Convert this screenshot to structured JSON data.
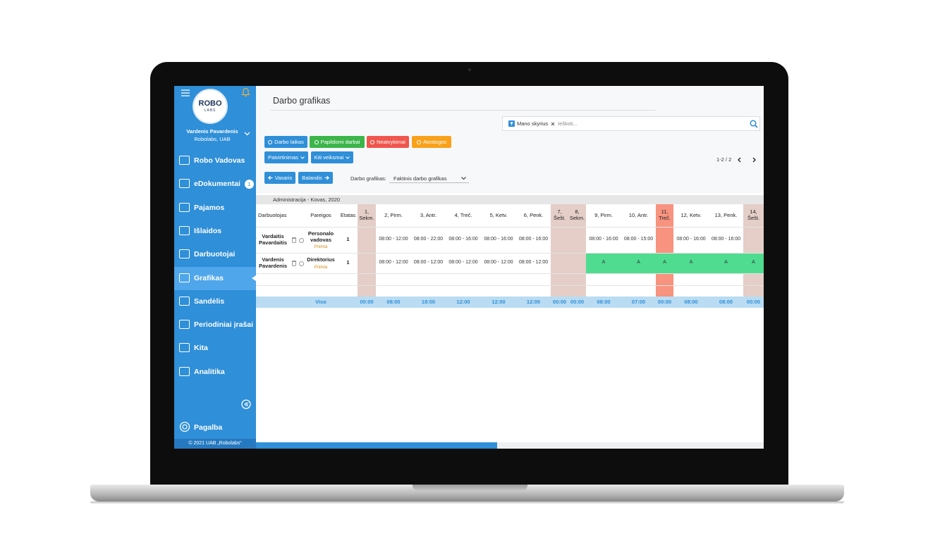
{
  "sidebar": {
    "logo": {
      "top": "ROBO",
      "bottom": "LABS"
    },
    "user": "Vardenis Pavardenis",
    "company": "Robolabs, UAB",
    "menu": [
      {
        "label": "Robo Vadovas"
      },
      {
        "label": "eDokumentai",
        "badge": "1"
      },
      {
        "label": "Pajamos"
      },
      {
        "label": "Išlaidos"
      },
      {
        "label": "Darbuotojai"
      },
      {
        "label": "Grafikas",
        "active": true
      },
      {
        "label": "Sandėlis"
      },
      {
        "label": "Periodiniai įrašai"
      },
      {
        "label": "Kita"
      },
      {
        "label": "Analitika"
      }
    ],
    "help": "Pagalba",
    "copyright": "© 2021 UAB „Robolabs“"
  },
  "page": {
    "title": "Darbo grafikas",
    "search": {
      "filter": "Mano skyrius",
      "placeholder": "Ieškoti..."
    },
    "buttons": [
      {
        "label": "Darbo laikas",
        "color": "#2f8fd8"
      },
      {
        "label": "Papildomi darbai",
        "color": "#3cb54a"
      },
      {
        "label": "Neatvykimai",
        "color": "#f0564d"
      },
      {
        "label": "Atostogos",
        "color": "#f9a11b"
      }
    ],
    "actions": [
      "Patvirtinimas",
      "Kiti veiksmai"
    ],
    "pager": "1-2 / 2",
    "prev": "Vasaris",
    "next": "Balandis",
    "schedule_label": "Darbo grafikas:",
    "schedule_value": "Faktinis darbo grafikas"
  },
  "table": {
    "group": "Administracija - Kovas, 2020",
    "columns": [
      "Darbuotojas",
      "Pareigos",
      "Etatas"
    ],
    "days": [
      "1, Sekm.",
      "2, Pirm.",
      "3, Antr.",
      "4, Treč.",
      "5, Ketv.",
      "6, Penk.",
      "7, Šešt.",
      "8, Sekm.",
      "9, Pirm.",
      "10, Antr.",
      "11, Treč.",
      "12, Ketv.",
      "13, Penk.",
      "14, Šešt."
    ],
    "rows": [
      {
        "name": "Vardaitis Pavardaitis",
        "position": "Personalo vadovas",
        "status": "Priimta",
        "fte": "1",
        "cells": [
          null,
          "08:00 - 12:00",
          "08:00 - 22:00",
          "08:00 - 16:00",
          "08:00 - 16:00",
          "08:00 - 16:00",
          null,
          null,
          "08:00 - 16:00",
          "08:00 - 15:00",
          null,
          "08:00 - 16:00",
          "08:00 - 16:00",
          null
        ]
      },
      {
        "name": "Vardenis Pavardenis",
        "position": "Direktorius",
        "status": "Priimta",
        "fte": "1",
        "cells": [
          null,
          "08:00 - 12:00",
          "08:00 - 12:00",
          "08:00 - 12:00",
          "08:00 - 12:00",
          "08:00 - 12:00",
          null,
          null,
          "A",
          "A",
          "A",
          "A",
          "A",
          "A"
        ]
      }
    ],
    "total_label": "Viso",
    "totals": [
      "00:00",
      "08:00",
      "18:00",
      "12:00",
      "12:00",
      "12:00",
      "00:00",
      "00:00",
      "08:00",
      "07:00",
      "00:00",
      "08:00",
      "08:00",
      "00:00"
    ]
  }
}
